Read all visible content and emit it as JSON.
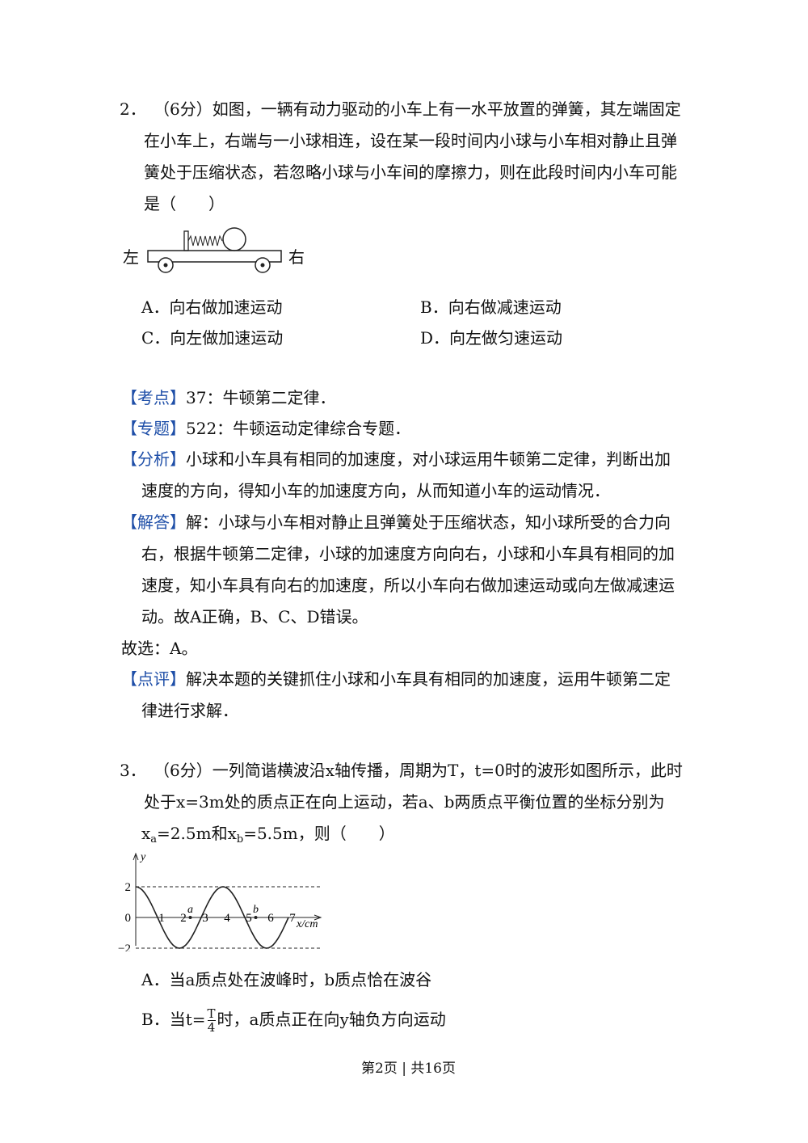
{
  "q2": {
    "number": "2．",
    "stem_lines": [
      "（6分）如图，一辆有动力驱动的小车上有一水平放置的弹簧，其左端固定",
      "在小车上，右端与一小球相连，设在某一段时间内小球与小车相对静止且弹",
      "簧处于压缩状态，若忽略小球与小车间的摩擦力，则在此段时间内小车可能",
      "是（　　）"
    ],
    "figure": {
      "left": "左",
      "right": "右"
    },
    "options": [
      "A．向右做加速运动",
      "B．向右做减速运动",
      "C．向左做加速运动",
      "D．向左做匀速运动"
    ]
  },
  "solution": [
    {
      "tag": "【考点】",
      "lines": [
        "37：牛顿第二定律．"
      ]
    },
    {
      "tag": "【专题】",
      "lines": [
        "522：牛顿运动定律综合专题．"
      ]
    },
    {
      "tag": "【分析】",
      "lines": [
        "小球和小车具有相同的加速度，对小球运用牛顿第二定律，判断出加",
        "速度的方向，得知小车的加速度方向，从而知道小车的运动情况．"
      ]
    },
    {
      "tag": "【解答】",
      "lines": [
        "解：小球与小车相对静止且弹簧处于压缩状态，知小球所受的合力向",
        "右，根据牛顿第二定律，小球的加速度方向向右，小球和小车具有相同的加",
        "速度，知小车具有向右的加速度，所以小车向右做加速运动或向左做减速运",
        "动。故A正确，B、C、D错误。"
      ]
    },
    {
      "lines": [
        "故选：A。"
      ]
    },
    {
      "tag": "【点评】",
      "lines": [
        "解决本题的关键抓住小球和小车具有相同的加速度，运用牛顿第二定",
        "律进行求解．"
      ]
    }
  ],
  "q3": {
    "number": "3．",
    "stem_lines": [
      "（6分）一列简谐横波沿x轴传播，周期为T，t=0时的波形如图所示，此时",
      "处于x=3m处的质点正在向上运动，若a、b两质点平衡位置的坐标分别为"
    ],
    "stem_last": {
      "parts": [
        "x",
        "a",
        "=2.5m和x",
        "b",
        "=5.5m，则（　　）"
      ]
    },
    "figure": {
      "y_label": "y",
      "y_ticks": [
        "2",
        "0",
        "−2"
      ],
      "x_ticks": [
        "1",
        "2",
        "3",
        "4",
        "5",
        "6",
        "7"
      ],
      "x_label": "x/cm",
      "points": [
        "a",
        "b"
      ]
    },
    "option_a": "A．当a质点处在波峰时，b质点恰在波谷",
    "option_b": {
      "before": "B．当t=",
      "numerator": "T",
      "denominator": "4",
      "after": "时，a质点正在向y轴负方向运动"
    }
  },
  "footer": "第2页 | 共16页"
}
